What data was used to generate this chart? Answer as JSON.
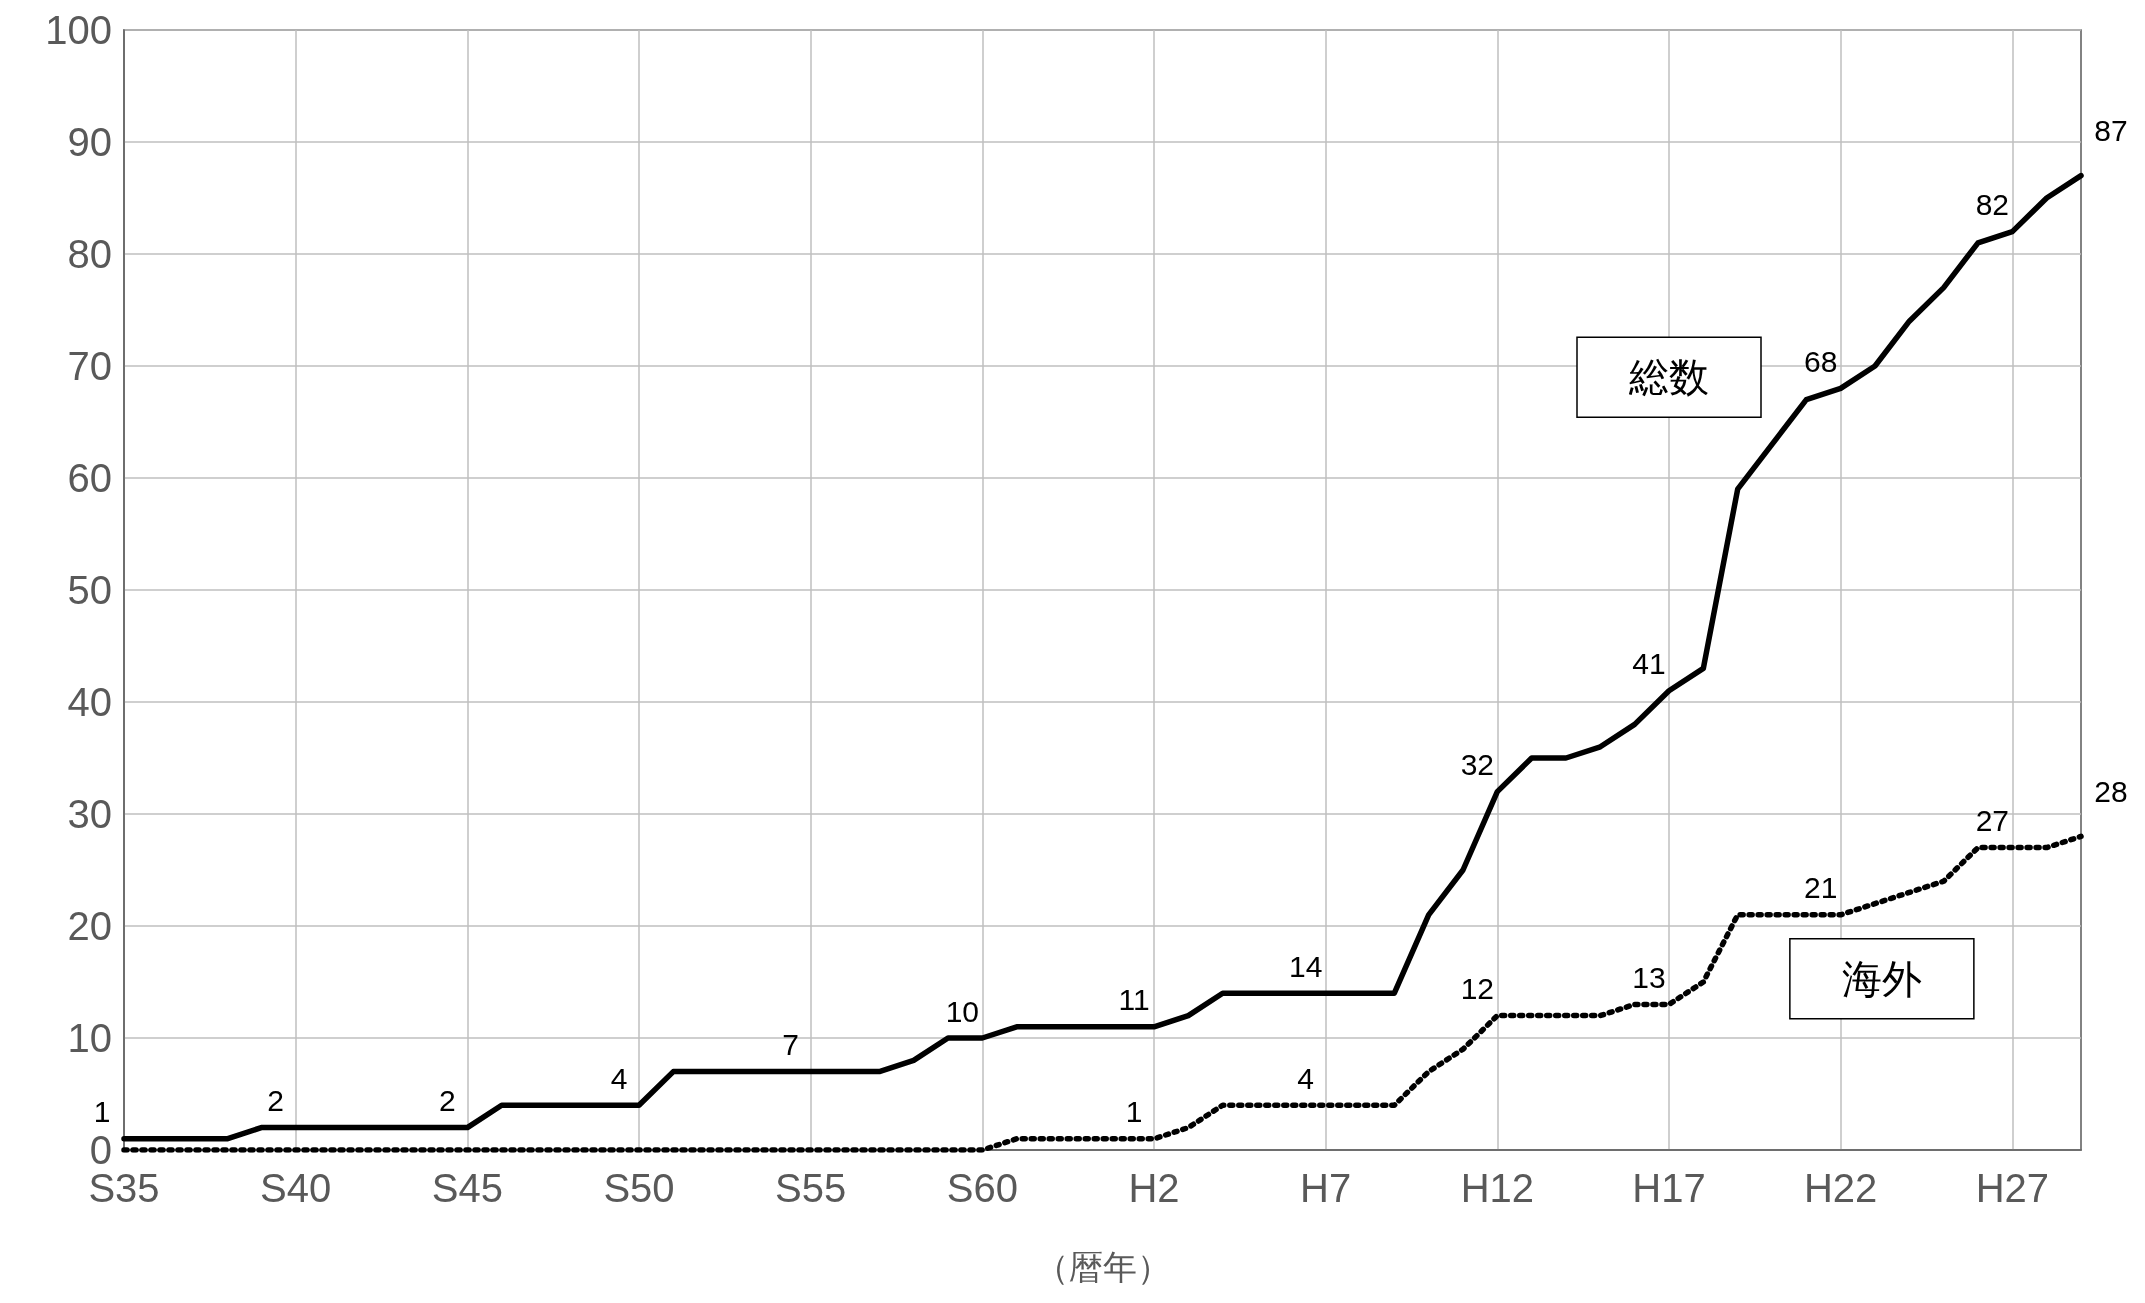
{
  "chart_data": {
    "type": "line",
    "xlabel": "（暦年）",
    "categories": [
      "S35",
      null,
      null,
      null,
      null,
      "S40",
      null,
      null,
      null,
      null,
      "S45",
      null,
      null,
      null,
      null,
      "S50",
      null,
      null,
      null,
      null,
      "S55",
      null,
      null,
      null,
      null,
      "S60",
      null,
      null,
      null,
      null,
      "H2",
      null,
      null,
      null,
      null,
      "H7",
      null,
      null,
      null,
      null,
      "H12",
      null,
      null,
      null,
      null,
      "H17",
      null,
      null,
      null,
      null,
      "H22",
      null,
      null,
      null,
      null,
      "H27",
      null,
      null
    ],
    "series": [
      {
        "name": "総数",
        "color": "#000000",
        "line_style": "solid",
        "values": [
          1,
          1,
          1,
          1,
          2,
          2,
          2,
          2,
          2,
          2,
          2,
          4,
          4,
          4,
          4,
          4,
          7,
          7,
          7,
          7,
          7,
          7,
          7,
          8,
          10,
          10,
          11,
          11,
          11,
          11,
          11,
          12,
          14,
          14,
          14,
          14,
          14,
          14,
          21,
          25,
          32,
          35,
          35,
          36,
          38,
          41,
          43,
          59,
          63,
          67,
          68,
          70,
          74,
          77,
          81,
          82,
          85,
          87
        ],
        "value_labels": [
          "1",
          null,
          null,
          null,
          null,
          "2",
          null,
          null,
          null,
          null,
          "2",
          null,
          null,
          null,
          null,
          "4",
          null,
          null,
          null,
          null,
          "7",
          null,
          null,
          null,
          null,
          "10",
          null,
          null,
          null,
          null,
          "11",
          null,
          null,
          null,
          null,
          "14",
          null,
          null,
          null,
          null,
          "32",
          null,
          null,
          null,
          null,
          "41",
          null,
          null,
          null,
          null,
          "68",
          null,
          null,
          null,
          null,
          "82",
          null,
          "87"
        ]
      },
      {
        "name": "海外",
        "color": "#000000",
        "line_style": "dotted",
        "values": [
          0,
          0,
          0,
          0,
          0,
          0,
          0,
          0,
          0,
          0,
          0,
          0,
          0,
          0,
          0,
          0,
          0,
          0,
          0,
          0,
          0,
          0,
          0,
          0,
          0,
          0,
          1,
          1,
          1,
          1,
          1,
          2,
          4,
          4,
          4,
          4,
          4,
          4,
          7,
          9,
          12,
          12,
          12,
          12,
          13,
          13,
          15,
          21,
          21,
          21,
          21,
          22,
          23,
          24,
          27,
          27,
          27,
          28
        ],
        "value_labels": [
          null,
          null,
          null,
          null,
          null,
          null,
          null,
          null,
          null,
          null,
          null,
          null,
          null,
          null,
          null,
          null,
          null,
          null,
          null,
          null,
          null,
          null,
          null,
          null,
          null,
          null,
          null,
          null,
          null,
          null,
          "1",
          null,
          null,
          null,
          null,
          "4",
          null,
          null,
          null,
          null,
          "12",
          null,
          null,
          null,
          null,
          "13",
          null,
          null,
          null,
          null,
          "21",
          null,
          null,
          null,
          null,
          "27",
          null,
          "28"
        ]
      }
    ],
    "ylim": [
      0,
      100
    ],
    "yticks": [
      0,
      10,
      20,
      30,
      40,
      50,
      60,
      70,
      80,
      90,
      100
    ],
    "grid": true,
    "marker": "none",
    "legend": false
  }
}
